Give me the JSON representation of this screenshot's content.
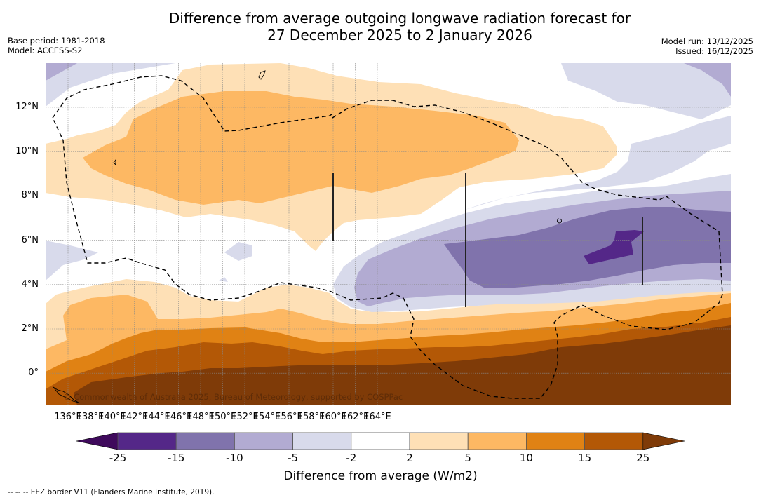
{
  "header": {
    "title_line1": "Difference from average outgoing longwave radiation forecast for",
    "title_line2": "27 December 2025 to 2 January 2026",
    "base_period": "Base period: 1981-2018",
    "model": "Model: ACCESS-S2",
    "model_run": "Model run: 13/12/2025",
    "issued": "Issued: 16/12/2025"
  },
  "map": {
    "copyright": "© Commonwealth of Australia 2025, Bureau of Meteorology, supported by COSPPac",
    "lon_range": [
      134.9,
      165.8
    ],
    "lat_range": [
      -1.5,
      13.9
    ],
    "y_ticks": [
      {
        "lat": 12,
        "label": "12°N"
      },
      {
        "lat": 10,
        "label": "10°N"
      },
      {
        "lat": 8,
        "label": "8°N"
      },
      {
        "lat": 6,
        "label": "6°N"
      },
      {
        "lat": 4,
        "label": "4°N"
      },
      {
        "lat": 2,
        "label": "2°N"
      },
      {
        "lat": 0,
        "label": "0°"
      }
    ],
    "x_ticks": [
      {
        "lon": 136,
        "label": "136°E"
      },
      {
        "lon": 138,
        "label": "138°E"
      },
      {
        "lon": 140,
        "label": "140°E"
      },
      {
        "lon": 142,
        "label": "142°E"
      },
      {
        "lon": 144,
        "label": "144°E"
      },
      {
        "lon": 146,
        "label": "146°E"
      },
      {
        "lon": 148,
        "label": "148°E"
      },
      {
        "lon": 150,
        "label": "150°E"
      },
      {
        "lon": 152,
        "label": "152°E"
      },
      {
        "lon": 154,
        "label": "154°E"
      },
      {
        "lon": 156,
        "label": "156°E"
      },
      {
        "lon": 158,
        "label": "158°E"
      },
      {
        "lon": 160,
        "label": "160°E"
      },
      {
        "lon": 162,
        "label": "162°E"
      },
      {
        "lon": 164,
        "label": "164°E"
      }
    ]
  },
  "colorbar": {
    "label": "Difference from average (W/m2)",
    "ticks": [
      "-25",
      "-15",
      "-10",
      "-5",
      "-2",
      "2",
      "5",
      "10",
      "15",
      "25"
    ],
    "extend_low_color": "#3f0a5c",
    "extend_high_color": "#7f3b08",
    "bins": [
      {
        "range": [
          -25,
          -15
        ],
        "color": "#542788"
      },
      {
        "range": [
          -15,
          -10
        ],
        "color": "#8073ac"
      },
      {
        "range": [
          -10,
          -5
        ],
        "color": "#b2abd2"
      },
      {
        "range": [
          -5,
          -2
        ],
        "color": "#d8daeb"
      },
      {
        "range": [
          -2,
          2
        ],
        "color": "#ffffff"
      },
      {
        "range": [
          2,
          5
        ],
        "color": "#fee0b6"
      },
      {
        "range": [
          5,
          10
        ],
        "color": "#fdb863"
      },
      {
        "range": [
          10,
          15
        ],
        "color": "#e08214"
      },
      {
        "range": [
          15,
          25
        ],
        "color": "#b35806"
      }
    ]
  },
  "footnote": "--  --  -- EEZ border V11 (Flanders Marine Institute, 2019)."
}
